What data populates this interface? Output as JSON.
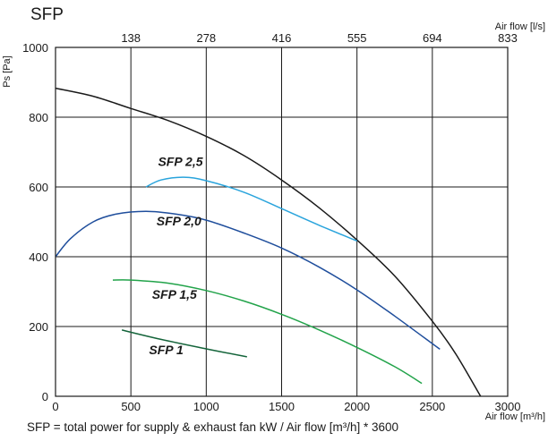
{
  "chart_data": {
    "type": "line",
    "title": "SFP",
    "xlabel": "Air flow [m³/h]",
    "ylabel": "Ps [Pa]",
    "x2label": "Air flow [l/s]",
    "xlim": [
      0,
      3000
    ],
    "ylim": [
      0,
      1000
    ],
    "x_ticks": [
      0,
      500,
      1000,
      1500,
      2000,
      2500,
      3000
    ],
    "y_ticks": [
      0,
      200,
      400,
      600,
      800,
      1000
    ],
    "x2_ticks": [
      {
        "at": 500,
        "label": "138"
      },
      {
        "at": 1000,
        "label": "278"
      },
      {
        "at": 1500,
        "label": "416"
      },
      {
        "at": 2000,
        "label": "555"
      },
      {
        "at": 2500,
        "label": "694"
      },
      {
        "at": 3000,
        "label": "833"
      }
    ],
    "grid": true,
    "footnote": "SFP = total power for supply & exhaust fan kW / Air flow [m³/h] * 3600",
    "series": [
      {
        "name": "fan curve",
        "color": "#1a1a1a",
        "x": [
          0,
          250,
          500,
          750,
          1000,
          1250,
          1500,
          1750,
          2000,
          2250,
          2500,
          2650,
          2820
        ],
        "y": [
          883,
          860,
          825,
          790,
          745,
          690,
          620,
          540,
          448,
          345,
          215,
          125,
          0
        ]
      },
      {
        "name": "SFP 2,5",
        "color": "#2aa4dc",
        "label_at": [
          680,
          660
        ],
        "x": [
          600,
          700,
          850,
          1000,
          1250,
          1500,
          1750,
          2000
        ],
        "y": [
          600,
          620,
          628,
          618,
          585,
          538,
          490,
          445
        ]
      },
      {
        "name": "SFP 2,0",
        "color": "#1f4e9c",
        "label_at": [
          670,
          490
        ],
        "x": [
          0,
          100,
          250,
          400,
          600,
          800,
          1000,
          1250,
          1500,
          1750,
          2000,
          2250,
          2550
        ],
        "y": [
          400,
          452,
          500,
          522,
          530,
          522,
          505,
          468,
          425,
          370,
          305,
          230,
          135
        ]
      },
      {
        "name": "SFP 1,5",
        "color": "#22a34a",
        "label_at": [
          640,
          280
        ],
        "x": [
          380,
          500,
          750,
          1000,
          1250,
          1500,
          1750,
          2000,
          2250,
          2430
        ],
        "y": [
          333,
          333,
          324,
          303,
          273,
          235,
          190,
          140,
          85,
          37
        ]
      },
      {
        "name": "SFP 1",
        "color": "#14643a",
        "label_at": [
          620,
          120
        ],
        "x": [
          440,
          700,
          1000,
          1270
        ],
        "y": [
          190,
          163,
          136,
          113
        ]
      }
    ]
  }
}
